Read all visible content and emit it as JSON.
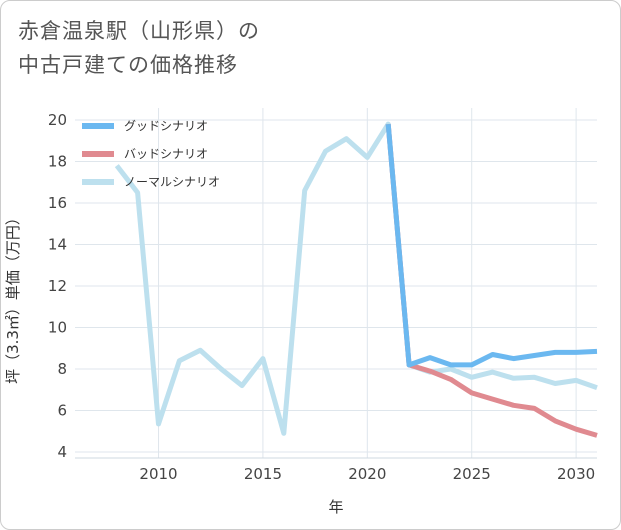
{
  "chart_data": {
    "type": "line",
    "title_lines": [
      "赤倉温泉駅（山形県）の",
      "中古戸建ての価格推移"
    ],
    "xlabel": "年",
    "ylabel": "坪（3.3㎡）単価（万円）",
    "xlim": [
      2006,
      2031
    ],
    "ylim": [
      3.8,
      20.2
    ],
    "xticks": [
      2010,
      2015,
      2020,
      2025,
      2030
    ],
    "yticks": [
      4,
      6,
      8,
      10,
      12,
      14,
      16,
      18,
      20
    ],
    "legend_position": "top-left",
    "series": [
      {
        "name": "グッドシナリオ",
        "color": "#6bb8f0",
        "x": [
          2021,
          2022,
          2023,
          2024,
          2025,
          2026,
          2027,
          2028,
          2029,
          2030,
          2031
        ],
        "y": [
          19.8,
          8.2,
          8.55,
          8.2,
          8.2,
          8.7,
          8.5,
          8.65,
          8.8,
          8.8,
          8.85
        ]
      },
      {
        "name": "バッドシナリオ",
        "color": "#e08a90",
        "x": [
          2021,
          2022,
          2023,
          2024,
          2025,
          2026,
          2027,
          2028,
          2029,
          2030,
          2031
        ],
        "y": [
          19.8,
          8.2,
          7.9,
          7.5,
          6.85,
          6.55,
          6.25,
          6.1,
          5.5,
          5.1,
          4.8
        ]
      },
      {
        "name": "ノーマルシナリオ",
        "color": "#bde0ee",
        "x": [
          2008,
          2009,
          2010,
          2011,
          2012,
          2013,
          2014,
          2015,
          2016,
          2017,
          2018,
          2019,
          2020,
          2021,
          2022,
          2023,
          2024,
          2025,
          2026,
          2027,
          2028,
          2029,
          2030,
          2031
        ],
        "y": [
          17.8,
          16.5,
          5.35,
          8.4,
          8.9,
          8.0,
          7.2,
          8.5,
          4.9,
          16.6,
          18.5,
          19.1,
          18.2,
          19.8,
          8.2,
          7.85,
          8.0,
          7.6,
          7.85,
          7.55,
          7.6,
          7.3,
          7.45,
          7.1
        ]
      }
    ]
  }
}
